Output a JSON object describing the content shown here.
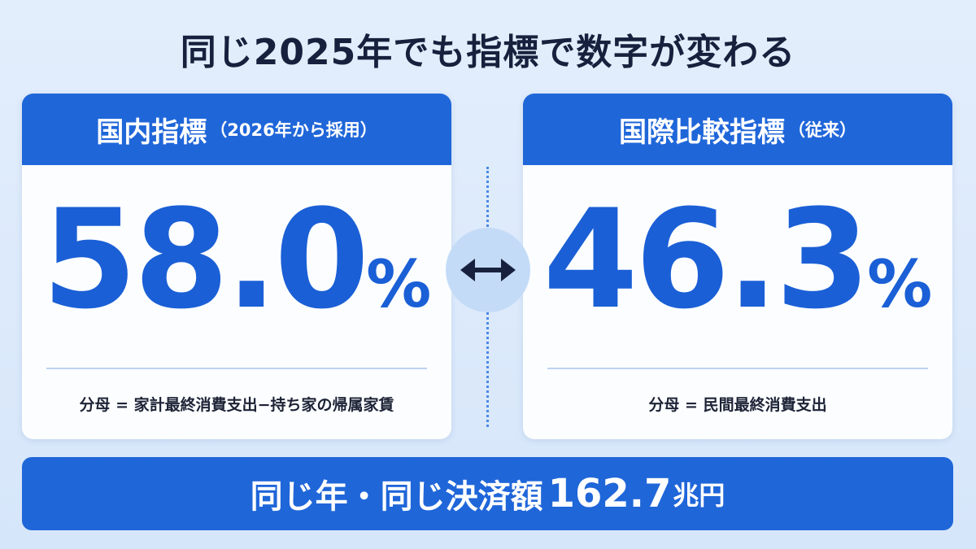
{
  "title": "同じ2025年でも指標で数字が変わる",
  "cards": [
    {
      "name": "国内指標",
      "note": "（2026年から採用）",
      "value": "58.0",
      "unit": "%",
      "formula": "分母 = 家計最終消費支出−持ち家の帰属家賃"
    },
    {
      "name": "国際比較指標",
      "note": "（従来）",
      "value": "46.3",
      "unit": "%",
      "formula": "分母 = 民間最終消費支出"
    }
  ],
  "banner": {
    "text": "同じ年・同じ決済額",
    "value": "162.7",
    "unit": "兆円"
  }
}
